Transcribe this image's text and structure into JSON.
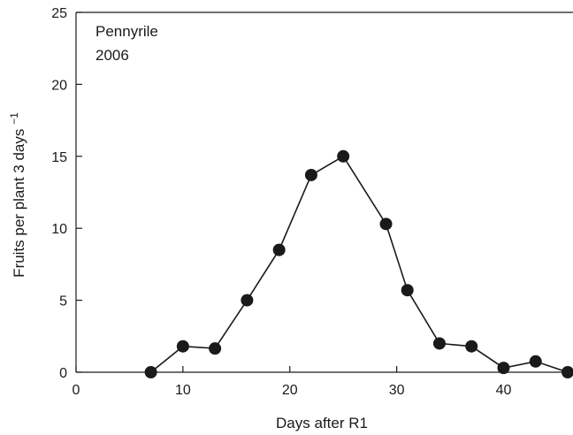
{
  "chart_data": {
    "type": "line",
    "title": "",
    "annotation_lines": [
      "Pennyrile",
      "2006"
    ],
    "xlabel": "Days after R1",
    "ylabel": "Fruits per plant 3 days",
    "ylabel_superscript": "−1",
    "xlim": [
      0,
      46
    ],
    "ylim": [
      0,
      25
    ],
    "xticks": [
      0,
      10,
      20,
      30,
      40
    ],
    "yticks": [
      0,
      5,
      10,
      15,
      20,
      25
    ],
    "grid": false,
    "legend": "none",
    "series": [
      {
        "x": [
          7,
          10,
          13,
          16,
          19,
          22,
          25,
          29,
          31,
          34,
          37,
          40,
          43,
          46
        ],
        "y": [
          0,
          1.8,
          1.65,
          5.0,
          8.5,
          13.7,
          15.0,
          10.3,
          5.7,
          2.0,
          1.8,
          0.3,
          0.75,
          0
        ]
      }
    ],
    "marker": "filled-circle",
    "color": "#1a1a1a"
  }
}
